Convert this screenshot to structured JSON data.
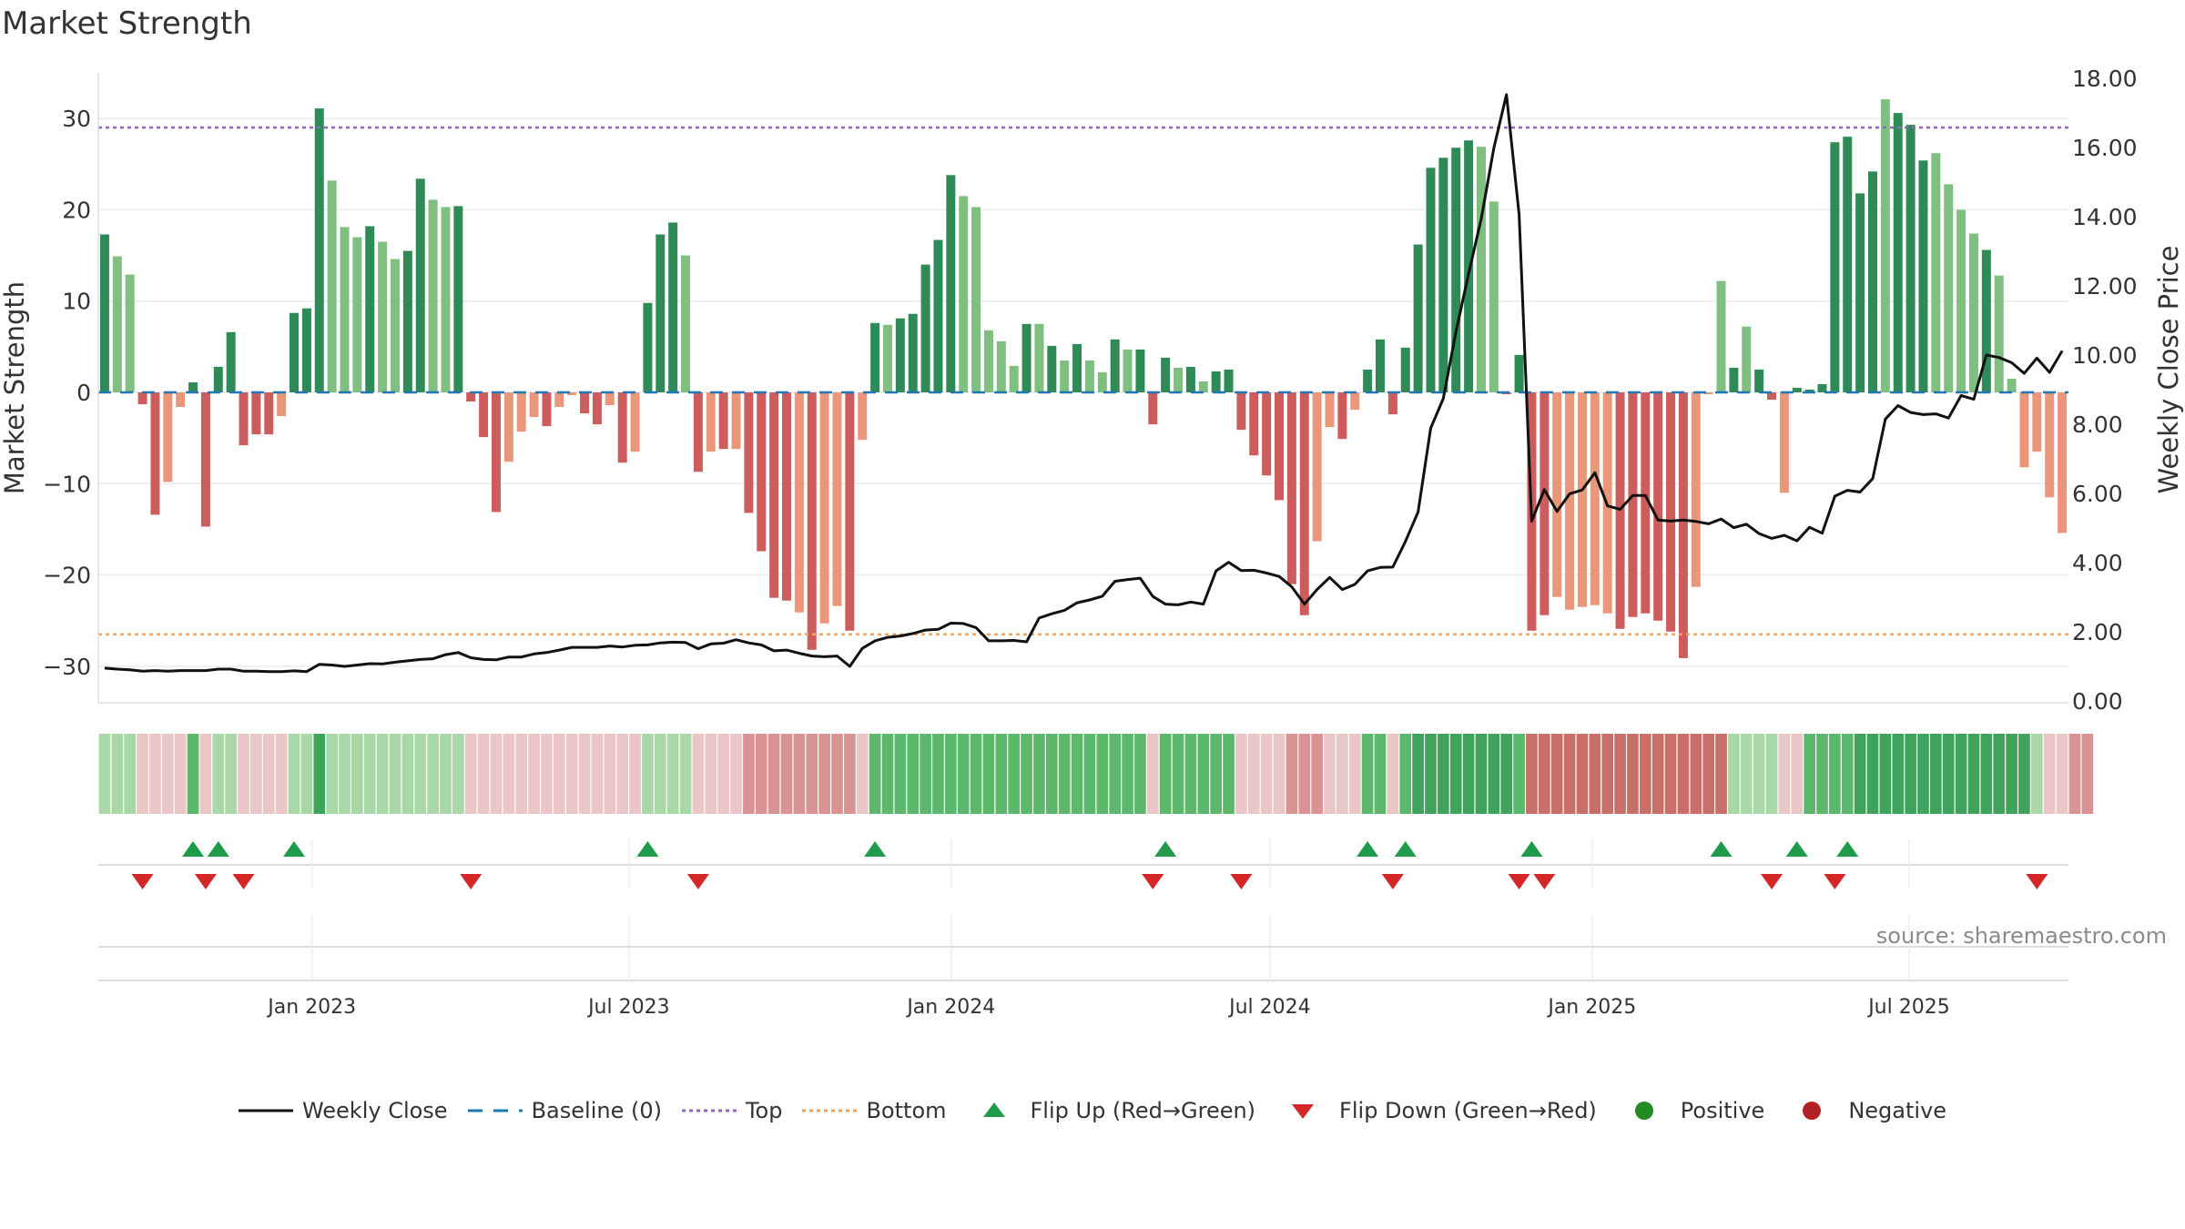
{
  "title": "Market Strength",
  "source": "source: sharemaestro.com",
  "colors": {
    "strong_green": "#2e8b57",
    "light_green": "#7fbf7f",
    "strong_red": "#cd5c5c",
    "light_red": "#e9967a",
    "line": "#111111",
    "baseline": "#1f77b4",
    "top": "#9467bd",
    "bottom": "#f4a460",
    "flip_up": "#1e9a4a",
    "flip_down": "#d62728",
    "positive": "#228b22",
    "negative": "#b22222"
  },
  "chart_data": {
    "type": "bar+line",
    "title": "Market Strength",
    "ylabel_left": "Market Strength",
    "ylabel_right": "Weekly Close Price",
    "ylim_left": [
      -34,
      35
    ],
    "ylim_right": [
      0,
      18
    ],
    "yticks_left": [
      30,
      20,
      10,
      0,
      -10,
      -20,
      -30
    ],
    "ytick_labels_left": [
      "30",
      "20",
      "10",
      "0",
      "−10",
      "−20",
      "−30"
    ],
    "yticks_right": [
      "0.00",
      "2.00",
      "4.00",
      "6.00",
      "8.00",
      "10.00",
      "12.00",
      "14.00",
      "16.00",
      "18.00"
    ],
    "x_start": "2022-09-01",
    "x_end": "2025-09-30",
    "xtick_labels": [
      {
        "label": "Jan 2023",
        "date": "2023-01-01"
      },
      {
        "label": "Jul 2023",
        "date": "2023-07-01"
      },
      {
        "label": "Jan 2024",
        "date": "2024-01-01"
      },
      {
        "label": "Jul 2024",
        "date": "2024-07-01"
      },
      {
        "label": "Jan 2025",
        "date": "2025-01-01"
      },
      {
        "label": "Jul 2025",
        "date": "2025-07-01"
      }
    ],
    "top_threshold": 29,
    "bottom_threshold": -26.5,
    "strength": [
      17.3,
      14.9,
      12.9,
      -1.3,
      -13.4,
      -9.8,
      -1.6,
      1.1,
      -14.7,
      2.8,
      6.6,
      -5.8,
      -4.6,
      -4.6,
      -2.6,
      8.7,
      9.2,
      31.1,
      23.2,
      18.1,
      17.0,
      18.2,
      16.5,
      14.6,
      15.5,
      23.4,
      21.1,
      20.3,
      20.4,
      -1.0,
      -4.9,
      -13.1,
      -7.6,
      -4.3,
      -2.7,
      -3.7,
      -1.6,
      -0.3,
      -2.3,
      -3.5,
      -1.4,
      -7.7,
      -6.5,
      9.8,
      17.3,
      18.6,
      15.0,
      -8.7,
      -6.5,
      -6.2,
      -6.2,
      -13.2,
      -17.4,
      -22.5,
      -22.8,
      -24.1,
      -28.2,
      -25.3,
      -23.4,
      -26.1,
      -5.2,
      7.6,
      7.4,
      8.1,
      8.6,
      14.0,
      16.7,
      23.8,
      21.5,
      20.3,
      6.8,
      5.6,
      2.9,
      7.5,
      7.5,
      5.1,
      3.5,
      5.3,
      3.5,
      2.2,
      5.8,
      4.7,
      4.7,
      -3.5,
      3.8,
      2.7,
      2.8,
      1.2,
      2.3,
      2.5,
      -4.1,
      -6.9,
      -9.1,
      -11.8,
      -21.0,
      -24.4,
      -16.3,
      -3.8,
      -5.1,
      -1.9,
      2.5,
      5.8,
      -2.4,
      4.9,
      16.2,
      24.6,
      25.7,
      26.8,
      27.6,
      26.9,
      20.9,
      -0.2,
      4.1,
      -26.1,
      -24.4,
      -22.4,
      -23.8,
      -23.5,
      -23.3,
      -24.2,
      -25.9,
      -24.6,
      -24.2,
      -25.0,
      -26.2,
      -29.1,
      -21.3,
      -0.2,
      12.2,
      2.7,
      7.2,
      2.5,
      -0.8,
      -11.0,
      0.5,
      0.3,
      0.9,
      27.4,
      28.0,
      21.8,
      24.2,
      32.1,
      30.6,
      29.3,
      25.4,
      26.2,
      22.8,
      20.0,
      17.4,
      15.6,
      12.8,
      1.5,
      -8.2,
      -6.5,
      -11.5,
      -15.4
    ],
    "strength_shade": [
      "s",
      "l",
      "l",
      "s",
      "s",
      "l",
      "l",
      "s",
      "s",
      "s",
      "s",
      "s",
      "s",
      "s",
      "l",
      "s",
      "s",
      "s",
      "l",
      "l",
      "l",
      "s",
      "l",
      "l",
      "s",
      "s",
      "l",
      "l",
      "s",
      "s",
      "s",
      "s",
      "l",
      "l",
      "l",
      "s",
      "l",
      "l",
      "s",
      "s",
      "l",
      "s",
      "l",
      "s",
      "s",
      "s",
      "l",
      "s",
      "l",
      "s",
      "l",
      "s",
      "s",
      "s",
      "s",
      "l",
      "s",
      "l",
      "l",
      "s",
      "l",
      "s",
      "l",
      "s",
      "s",
      "s",
      "s",
      "s",
      "l",
      "l",
      "l",
      "l",
      "l",
      "s",
      "l",
      "s",
      "l",
      "s",
      "l",
      "l",
      "s",
      "l",
      "s",
      "s",
      "s",
      "l",
      "s",
      "l",
      "s",
      "s",
      "s",
      "s",
      "s",
      "s",
      "s",
      "s",
      "l",
      "l",
      "s",
      "l",
      "s",
      "s",
      "s",
      "s",
      "s",
      "s",
      "s",
      "s",
      "s",
      "l",
      "l",
      "s",
      "s",
      "s",
      "s",
      "l",
      "l",
      "l",
      "l",
      "l",
      "s",
      "s",
      "s",
      "s",
      "s",
      "s",
      "l",
      "l",
      "l",
      "s",
      "l",
      "s",
      "s",
      "l",
      "s",
      "s",
      "s",
      "s",
      "s",
      "s",
      "s",
      "l",
      "s",
      "s",
      "s",
      "l",
      "l",
      "l",
      "l",
      "s",
      "l",
      "l",
      "l",
      "l",
      "l",
      "l",
      "s",
      "l",
      "s",
      "s"
    ],
    "weekly_close": [
      0.95,
      0.92,
      0.9,
      0.86,
      0.88,
      0.86,
      0.88,
      0.88,
      0.88,
      0.92,
      0.92,
      0.86,
      0.86,
      0.85,
      0.85,
      0.87,
      0.85,
      1.06,
      1.04,
      1.0,
      1.04,
      1.08,
      1.07,
      1.12,
      1.16,
      1.2,
      1.22,
      1.34,
      1.4,
      1.25,
      1.2,
      1.19,
      1.27,
      1.27,
      1.36,
      1.4,
      1.47,
      1.55,
      1.55,
      1.55,
      1.59,
      1.56,
      1.61,
      1.62,
      1.68,
      1.7,
      1.69,
      1.51,
      1.65,
      1.67,
      1.77,
      1.68,
      1.62,
      1.45,
      1.47,
      1.38,
      1.3,
      1.28,
      1.3,
      1.0,
      1.52,
      1.74,
      1.84,
      1.88,
      1.95,
      2.05,
      2.07,
      2.25,
      2.24,
      2.12,
      1.74,
      1.74,
      1.75,
      1.71,
      2.4,
      2.52,
      2.62,
      2.84,
      2.92,
      3.03,
      3.46,
      3.51,
      3.55,
      3.02,
      2.8,
      2.78,
      2.86,
      2.8,
      3.76,
      4.01,
      3.77,
      3.78,
      3.7,
      3.6,
      3.3,
      2.8,
      3.22,
      3.57,
      3.22,
      3.37,
      3.76,
      3.86,
      3.87,
      4.61,
      5.46,
      7.89,
      8.74,
      10.67,
      12.35,
      13.94,
      15.98,
      17.53,
      14.06,
      5.2,
      6.11,
      5.48,
      5.99,
      6.1,
      6.6,
      5.64,
      5.54,
      5.94,
      5.94,
      5.23,
      5.2,
      5.23,
      5.19,
      5.12,
      5.26,
      5.01,
      5.11,
      4.84,
      4.7,
      4.79,
      4.63,
      5.02,
      4.85,
      5.92,
      6.09,
      6.04,
      6.43,
      8.15,
      8.54,
      8.34,
      8.28,
      8.3,
      8.18,
      8.83,
      8.72,
      10.0,
      9.93,
      9.78,
      9.47,
      9.91,
      9.5,
      10.12
    ],
    "color_strip": [
      "lg",
      "lg",
      "lg",
      "lr",
      "lr",
      "lr",
      "lr",
      "vg",
      "lr",
      "lg",
      "lg",
      "lr",
      "lr",
      "lr",
      "lr",
      "lg",
      "lg",
      "sg",
      "lg",
      "lg",
      "lg",
      "lg",
      "lg",
      "lg",
      "lg",
      "lg",
      "lg",
      "lg",
      "lg",
      "lr",
      "lr",
      "lr",
      "lr",
      "lr",
      "lr",
      "lr",
      "lr",
      "lr",
      "lr",
      "lr",
      "lr",
      "lr",
      "lr",
      "lg",
      "lg",
      "lg",
      "lg",
      "lr",
      "lr",
      "lr",
      "lr",
      "mr",
      "mr",
      "mr",
      "mr",
      "mr",
      "mr",
      "mr",
      "mr",
      "mr",
      "lr",
      "vg",
      "vg",
      "vg",
      "vg",
      "vg",
      "vg",
      "vg",
      "vg",
      "vg",
      "vg",
      "vg",
      "vg",
      "vg",
      "vg",
      "vg",
      "vg",
      "vg",
      "vg",
      "vg",
      "vg",
      "vg",
      "vg",
      "lr",
      "vg",
      "vg",
      "vg",
      "vg",
      "vg",
      "vg",
      "lr",
      "lr",
      "lr",
      "lr",
      "mr",
      "mr",
      "mr",
      "lr",
      "lr",
      "lr",
      "vg",
      "vg",
      "lr",
      "vg",
      "sg",
      "sg",
      "sg",
      "sg",
      "sg",
      "sg",
      "sg",
      "sg",
      "vg",
      "sr",
      "sr",
      "sr",
      "sr",
      "sr",
      "sr",
      "sr",
      "sr",
      "sr",
      "sr",
      "sr",
      "sr",
      "sr",
      "sr",
      "sr",
      "sr",
      "lg",
      "lg",
      "lg",
      "lg",
      "lr",
      "lr",
      "vg",
      "vg",
      "vg",
      "vg",
      "sg",
      "sg",
      "sg",
      "sg",
      "sg",
      "sg",
      "sg",
      "sg",
      "sg",
      "sg",
      "sg",
      "sg",
      "sg",
      "sg",
      "lg",
      "lr",
      "lr",
      "mr",
      "mr"
    ],
    "flip_up_weeks": [
      7,
      9,
      15,
      43,
      61,
      84,
      100,
      103,
      113,
      128,
      134,
      138
    ],
    "flip_down_weeks": [
      3,
      8,
      11,
      29,
      47,
      83,
      90,
      102,
      112,
      114,
      132,
      137,
      153
    ],
    "legend": [
      {
        "key": "line",
        "label": "Weekly Close"
      },
      {
        "key": "baseline",
        "label": "Baseline (0)"
      },
      {
        "key": "top",
        "label": "Top"
      },
      {
        "key": "bottom",
        "label": "Bottom"
      },
      {
        "key": "flip_up",
        "label": "Flip Up (Red→Green)"
      },
      {
        "key": "flip_down",
        "label": "Flip Down (Green→Red)"
      },
      {
        "key": "positive",
        "label": "Positive"
      },
      {
        "key": "negative",
        "label": "Negative"
      }
    ]
  }
}
